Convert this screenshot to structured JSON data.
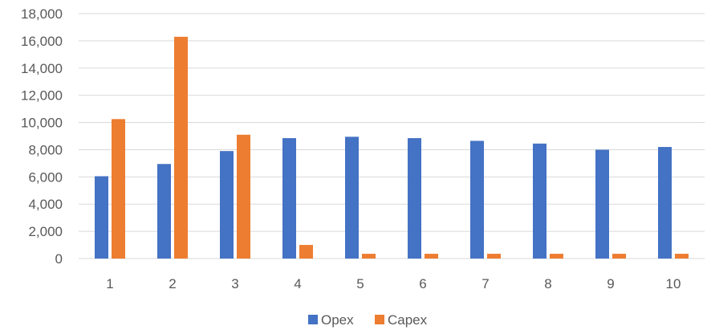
{
  "chart_data": {
    "type": "bar",
    "categories": [
      "1",
      "2",
      "3",
      "4",
      "5",
      "6",
      "7",
      "8",
      "9",
      "10"
    ],
    "series": [
      {
        "name": "Opex",
        "color": "#4472C4",
        "values": [
          6050,
          6950,
          7900,
          8850,
          8950,
          8850,
          8650,
          8450,
          8000,
          8200
        ]
      },
      {
        "name": "Capex",
        "color": "#ED7D31",
        "values": [
          10250,
          16300,
          9100,
          1000,
          350,
          350,
          350,
          350,
          350,
          350
        ]
      }
    ],
    "y_ticks": [
      "0",
      "2,000",
      "4,000",
      "6,000",
      "8,000",
      "10,000",
      "12,000",
      "14,000",
      "16,000",
      "18,000"
    ],
    "ylim": [
      0,
      18000
    ],
    "grid": true,
    "legend_position": "bottom"
  }
}
